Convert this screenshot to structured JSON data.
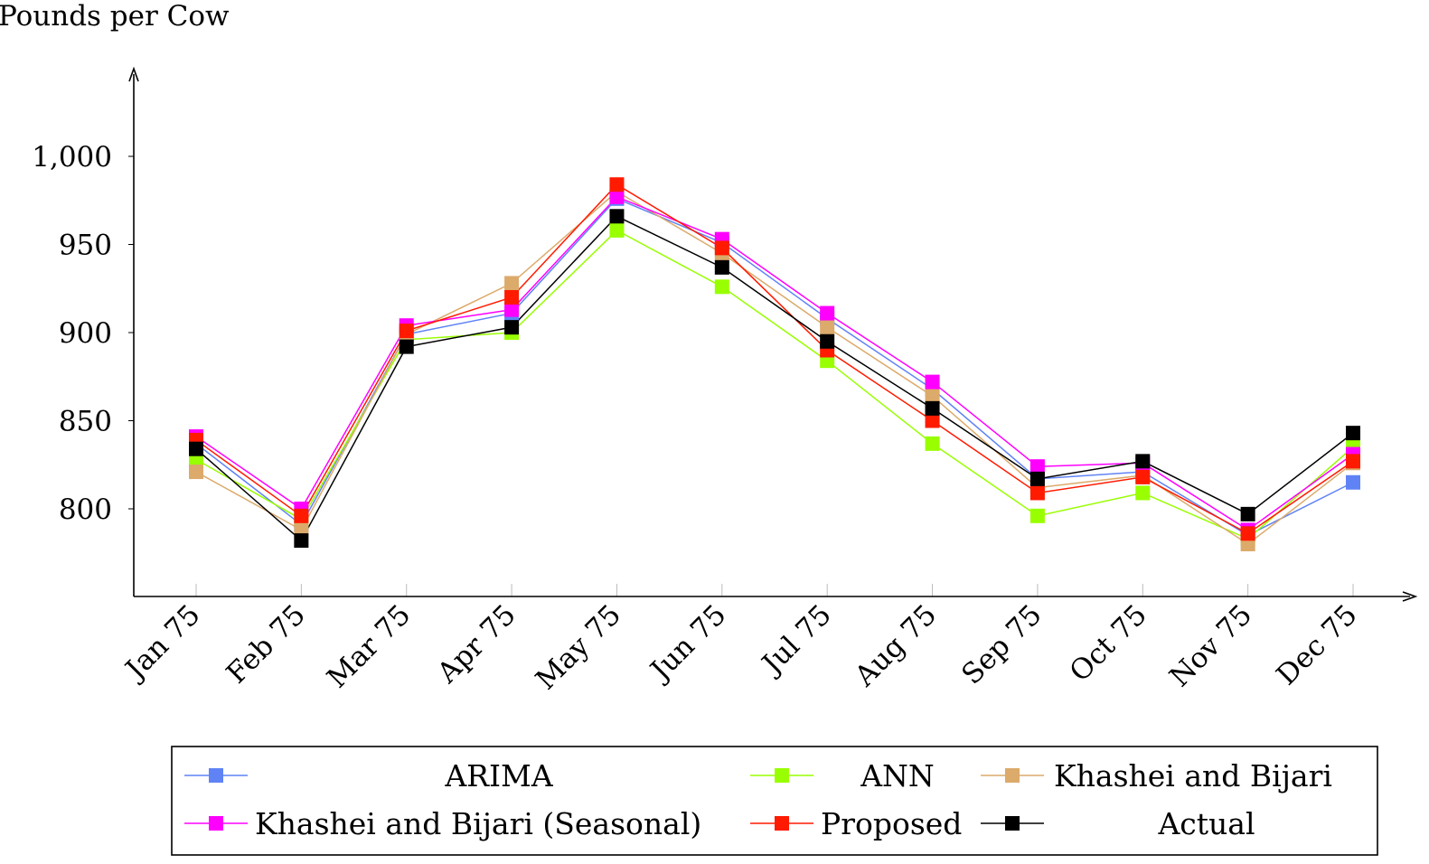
{
  "chart_data": {
    "type": "line",
    "title": "",
    "ylabel": "Pounds per Cow",
    "xlabel": "",
    "ylim": [
      750,
      1045
    ],
    "yticks": [
      800,
      850,
      900,
      950,
      1000
    ],
    "ytick_labels": [
      "800",
      "850",
      "900",
      "950",
      "1,000"
    ],
    "categories": [
      "Jan 75",
      "Feb 75",
      "Mar 75",
      "Apr 75",
      "May 75",
      "Jun 75",
      "Jul 75",
      "Aug 75",
      "Sep 75",
      "Oct 75",
      "Nov 75",
      "Dec 75"
    ],
    "legend_position": "bottom",
    "series": [
      {
        "name": "ARIMA",
        "color": "#5f83f5",
        "values": [
          837,
          791,
          899,
          911,
          976,
          951,
          908,
          868,
          817,
          821,
          785,
          815
        ]
      },
      {
        "name": "ANN",
        "color": "#99ff00",
        "values": [
          828,
          794,
          896,
          900,
          958,
          926,
          884,
          837,
          796,
          809,
          783,
          835
        ]
      },
      {
        "name": "Khashei and Bijari",
        "color": "#dcaa6a",
        "values": [
          821,
          788,
          899,
          928,
          980,
          945,
          903,
          864,
          812,
          819,
          780,
          826
        ]
      },
      {
        "name": "Khashei and Bijari (Seasonal)",
        "color": "#ff00ff",
        "values": [
          841,
          800,
          904,
          913,
          977,
          953,
          911,
          872,
          824,
          826,
          788,
          831
        ]
      },
      {
        "name": "Proposed",
        "color": "#ff1a00",
        "values": [
          839,
          796,
          901,
          920,
          984,
          948,
          890,
          850,
          809,
          818,
          786,
          827
        ]
      },
      {
        "name": "Actual",
        "color": "#000000",
        "values": [
          834,
          782,
          892,
          903,
          966,
          937,
          895,
          857,
          817,
          827,
          797,
          843
        ]
      }
    ]
  }
}
